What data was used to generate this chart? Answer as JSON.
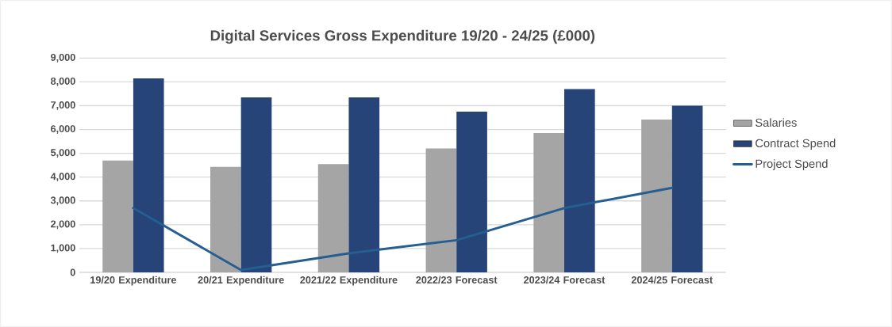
{
  "chart_data": {
    "type": "bar",
    "title": "Digital Services Gross Expenditure 19/20 - 24/25 (£000)",
    "categories": [
      "19/20 Expenditure",
      "20/21 Expenditure",
      "2021/22 Expenditure",
      "2022/23 Forecast",
      "2023/24 Forecast",
      "2024/25 Forecast"
    ],
    "series": [
      {
        "name": "Salaries",
        "color": "#a5a5a5",
        "values": [
          4700,
          4430,
          4550,
          5200,
          5850,
          6420
        ]
      },
      {
        "name": "Contract Spend",
        "color": "#264478",
        "values": [
          8150,
          7350,
          7350,
          6750,
          7700,
          7000
        ]
      },
      {
        "name": "Project Spend",
        "type": "line",
        "color": "#255e91",
        "values": [
          2700,
          100,
          800,
          1350,
          2700,
          3550
        ]
      }
    ],
    "ylim": [
      0,
      9000
    ],
    "yticks": [
      {
        "value": 0,
        "label": "0"
      },
      {
        "value": 1000,
        "label": "1,000"
      },
      {
        "value": 2000,
        "label": "2,000"
      },
      {
        "value": 3000,
        "label": "3,000"
      },
      {
        "value": 4000,
        "label": "4,000"
      },
      {
        "value": 5000,
        "label": "5,000"
      },
      {
        "value": 6000,
        "label": "6,000"
      },
      {
        "value": 7000,
        "label": "7,000"
      },
      {
        "value": 8000,
        "label": "8,000"
      },
      {
        "value": 9000,
        "label": "9,000"
      }
    ],
    "grid": "y",
    "legend": "right",
    "marker": "none",
    "line_style": "solid"
  }
}
